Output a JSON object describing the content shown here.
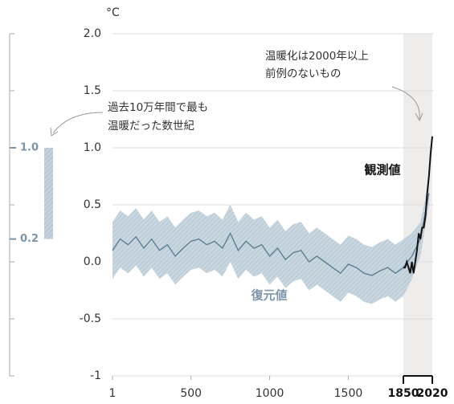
{
  "chart_data": {
    "type": "line",
    "y_unit": "°C",
    "ylim": [
      -1,
      2
    ],
    "yticks": [
      {
        "value": 2,
        "label": "2.0"
      },
      1.5,
      {
        "value": 1,
        "label": "1.0"
      },
      0.5,
      {
        "value": 0,
        "label": "0.0"
      },
      -0.5,
      -1
    ],
    "xlim": [
      1,
      2020
    ],
    "xticks": [
      1,
      500,
      1000,
      1500,
      1850,
      2020
    ],
    "grid": true,
    "series": [
      {
        "name": "復元値",
        "color": "#5e7f93",
        "band_color": "#c3d2dd",
        "x": [
          1,
          50,
          100,
          150,
          200,
          250,
          300,
          350,
          400,
          450,
          500,
          550,
          600,
          650,
          700,
          750,
          800,
          850,
          900,
          950,
          1000,
          1050,
          1100,
          1150,
          1200,
          1250,
          1300,
          1350,
          1400,
          1450,
          1500,
          1550,
          1600,
          1650,
          1700,
          1750,
          1800,
          1850,
          1900,
          1950,
          2000
        ],
        "values": [
          0.1,
          0.2,
          0.15,
          0.22,
          0.12,
          0.2,
          0.1,
          0.15,
          0.05,
          0.12,
          0.18,
          0.2,
          0.15,
          0.18,
          0.12,
          0.25,
          0.1,
          0.18,
          0.12,
          0.15,
          0.05,
          0.12,
          0.02,
          0.08,
          0.1,
          0.0,
          0.05,
          0.0,
          -0.05,
          -0.1,
          -0.02,
          -0.05,
          -0.1,
          -0.12,
          -0.08,
          -0.05,
          -0.1,
          -0.05,
          0.05,
          0.2,
          0.6
        ],
        "upper": [
          0.35,
          0.45,
          0.4,
          0.47,
          0.37,
          0.45,
          0.35,
          0.4,
          0.3,
          0.37,
          0.43,
          0.45,
          0.4,
          0.43,
          0.37,
          0.5,
          0.35,
          0.43,
          0.37,
          0.4,
          0.3,
          0.37,
          0.27,
          0.33,
          0.35,
          0.25,
          0.3,
          0.25,
          0.2,
          0.15,
          0.23,
          0.2,
          0.15,
          0.13,
          0.17,
          0.2,
          0.15,
          0.2,
          0.25,
          0.35,
          0.7
        ],
        "lower": [
          -0.15,
          -0.05,
          -0.1,
          -0.03,
          -0.13,
          -0.05,
          -0.15,
          -0.1,
          -0.2,
          -0.13,
          -0.07,
          -0.05,
          -0.1,
          -0.07,
          -0.13,
          0.0,
          -0.15,
          -0.07,
          -0.13,
          -0.1,
          -0.2,
          -0.13,
          -0.23,
          -0.17,
          -0.15,
          -0.25,
          -0.2,
          -0.25,
          -0.3,
          -0.35,
          -0.27,
          -0.3,
          -0.35,
          -0.37,
          -0.33,
          -0.3,
          -0.35,
          -0.3,
          -0.15,
          0.05,
          0.5
        ]
      },
      {
        "name": "観測値",
        "color": "#111111",
        "x": [
          1850,
          1860,
          1870,
          1880,
          1890,
          1900,
          1910,
          1920,
          1930,
          1940,
          1950,
          1960,
          1970,
          1980,
          1990,
          2000,
          2010,
          2020
        ],
        "values": [
          -0.05,
          -0.05,
          0.0,
          -0.05,
          -0.1,
          0.0,
          -0.1,
          0.0,
          0.1,
          0.25,
          0.2,
          0.3,
          0.3,
          0.4,
          0.6,
          0.75,
          0.95,
          1.1
        ]
      }
    ],
    "warmest_period": {
      "range": [
        0.2,
        1.0
      ],
      "ticks": [
        {
          "value": 1,
          "label": "1.0"
        },
        0.2
      ],
      "annotation": [
        "過去10万年間で最も",
        "温暖だった数世紀"
      ]
    },
    "annotation": [
      "温暖化は2000年以上",
      "前例のないもの"
    ]
  }
}
